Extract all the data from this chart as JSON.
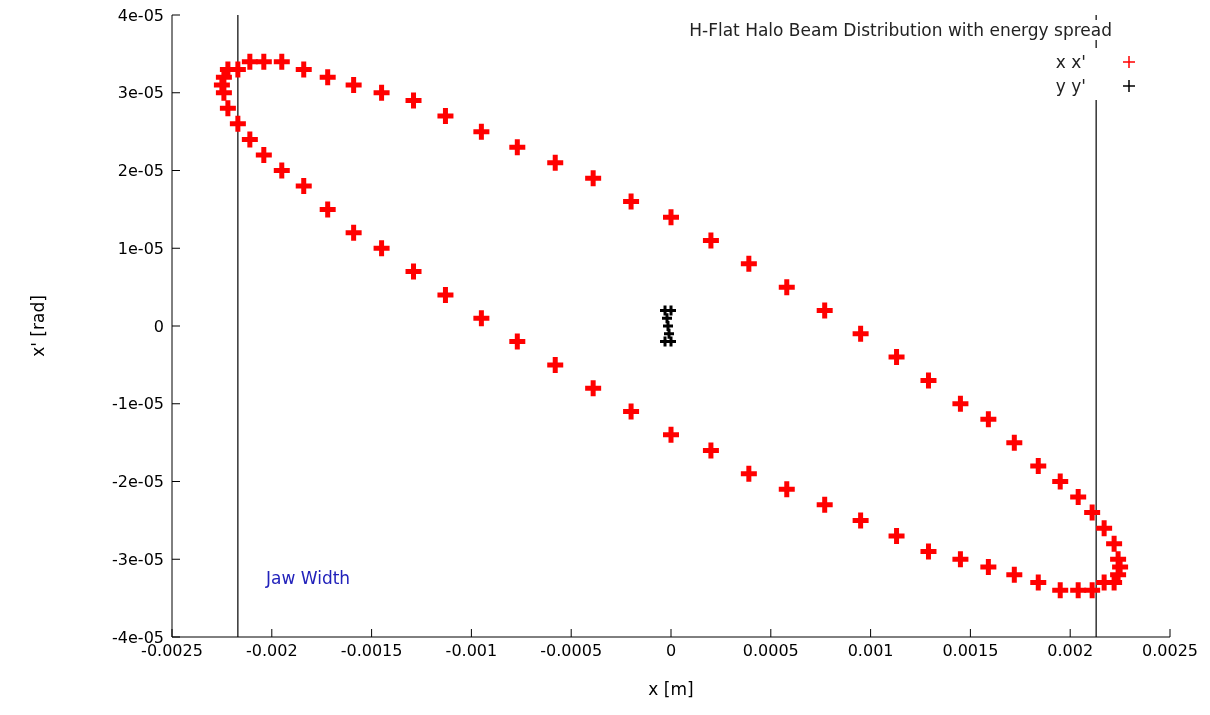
{
  "chart_data": {
    "type": "scatter",
    "title": "H-Flat Halo Beam Distribution with energy spread",
    "xlabel": "x [m]",
    "ylabel": "x' [rad]",
    "xlim": [
      -0.0025,
      0.0025
    ],
    "xticks": [
      -0.0025,
      -0.002,
      -0.0015,
      -0.001,
      -0.0005,
      0,
      0.0005,
      0.001,
      0.0015,
      0.002,
      0.0025
    ],
    "ylim": [
      -4e-05,
      4e-05
    ],
    "yticks": [
      {
        "value": -4e-05,
        "label": "-4e-05"
      },
      {
        "value": -3e-05,
        "label": "-3e-05"
      },
      {
        "value": -2e-05,
        "label": "-2e-05"
      },
      {
        "value": -1e-05,
        "label": "-1e-05"
      },
      0,
      {
        "value": 1e-05,
        "label": "1e-05"
      },
      {
        "value": 2e-05,
        "label": "2e-05"
      },
      {
        "value": 3e-05,
        "label": "3e-05"
      },
      {
        "value": 4e-05,
        "label": "4e-05"
      }
    ],
    "legend": "top right",
    "marker": "cross",
    "series": [
      {
        "name": "x x'",
        "color": "#ff0000",
        "x": [
          0.00225,
          0.00224,
          0.00222,
          0.00217,
          0.00211,
          0.00204,
          0.00195,
          0.00184,
          0.00172,
          0.00159,
          0.00145,
          0.00129,
          0.00113,
          0.00095,
          0.00077,
          0.00058,
          0.00039,
          0.0002,
          0,
          -0.0002,
          -0.00039,
          -0.00058,
          -0.00077,
          -0.00095,
          -0.00113,
          -0.00129,
          -0.00145,
          -0.00159,
          -0.00172,
          -0.00184,
          -0.00195,
          -0.00204,
          -0.00211,
          -0.00217,
          -0.00222,
          -0.00224,
          -0.00225,
          -0.00224,
          -0.00222,
          -0.00217,
          -0.00211,
          -0.00204,
          -0.00195,
          -0.00184,
          -0.00172,
          -0.00159,
          -0.00145,
          -0.00129,
          -0.00113,
          -0.00095,
          -0.00077,
          -0.00058,
          -0.00039,
          -0.0002,
          0,
          0.0002,
          0.00039,
          0.00058,
          0.00077,
          0.00095,
          0.00113,
          0.00129,
          0.00145,
          0.00159,
          0.00172,
          0.00184,
          0.00195,
          0.00204,
          0.00211,
          0.00217,
          0.00222,
          0.00224
        ],
        "values": [
          -3.1e-05,
          -3.2e-05,
          -3.3e-05,
          -3.3e-05,
          -3.4e-05,
          -3.4e-05,
          -3.4e-05,
          -3.3e-05,
          -3.2e-05,
          -3.1e-05,
          -3e-05,
          -2.9e-05,
          -2.7e-05,
          -2.5e-05,
          -2.3e-05,
          -2.1e-05,
          -1.9e-05,
          -1.6e-05,
          -1.4e-05,
          -1.1e-05,
          -8e-06,
          -5e-06,
          -2e-06,
          1e-06,
          4e-06,
          7e-06,
          1e-05,
          1.2e-05,
          1.5e-05,
          1.8e-05,
          2e-05,
          2.2e-05,
          2.4e-05,
          2.6e-05,
          2.8e-05,
          3e-05,
          3.1e-05,
          3.2e-05,
          3.3e-05,
          3.3e-05,
          3.4e-05,
          3.4e-05,
          3.4e-05,
          3.3e-05,
          3.2e-05,
          3.1e-05,
          3e-05,
          2.9e-05,
          2.7e-05,
          2.5e-05,
          2.3e-05,
          2.1e-05,
          1.9e-05,
          1.6e-05,
          1.4e-05,
          1.1e-05,
          8e-06,
          5e-06,
          2e-06,
          -1e-06,
          -4e-06,
          -7e-06,
          -1e-05,
          -1.2e-05,
          -1.5e-05,
          -1.8e-05,
          -2e-05,
          -2.2e-05,
          -2.4e-05,
          -2.6e-05,
          -2.8e-05,
          -3e-05
        ]
      },
      {
        "name": "y y'",
        "color": "#000000",
        "x": [
          -3e-05,
          0,
          -3e-05,
          0,
          -1.5e-05,
          -2e-05,
          -1e-05
        ],
        "values": [
          2e-06,
          2e-06,
          -2e-06,
          -2e-06,
          0,
          1e-06,
          -1e-06
        ]
      }
    ],
    "ref_lines": [
      {
        "axis": "x",
        "value": -0.00217,
        "color": "#000000"
      },
      {
        "axis": "x",
        "value": 0.00213,
        "color": "#000000"
      }
    ],
    "annotations": [
      "Jaw Width"
    ]
  }
}
